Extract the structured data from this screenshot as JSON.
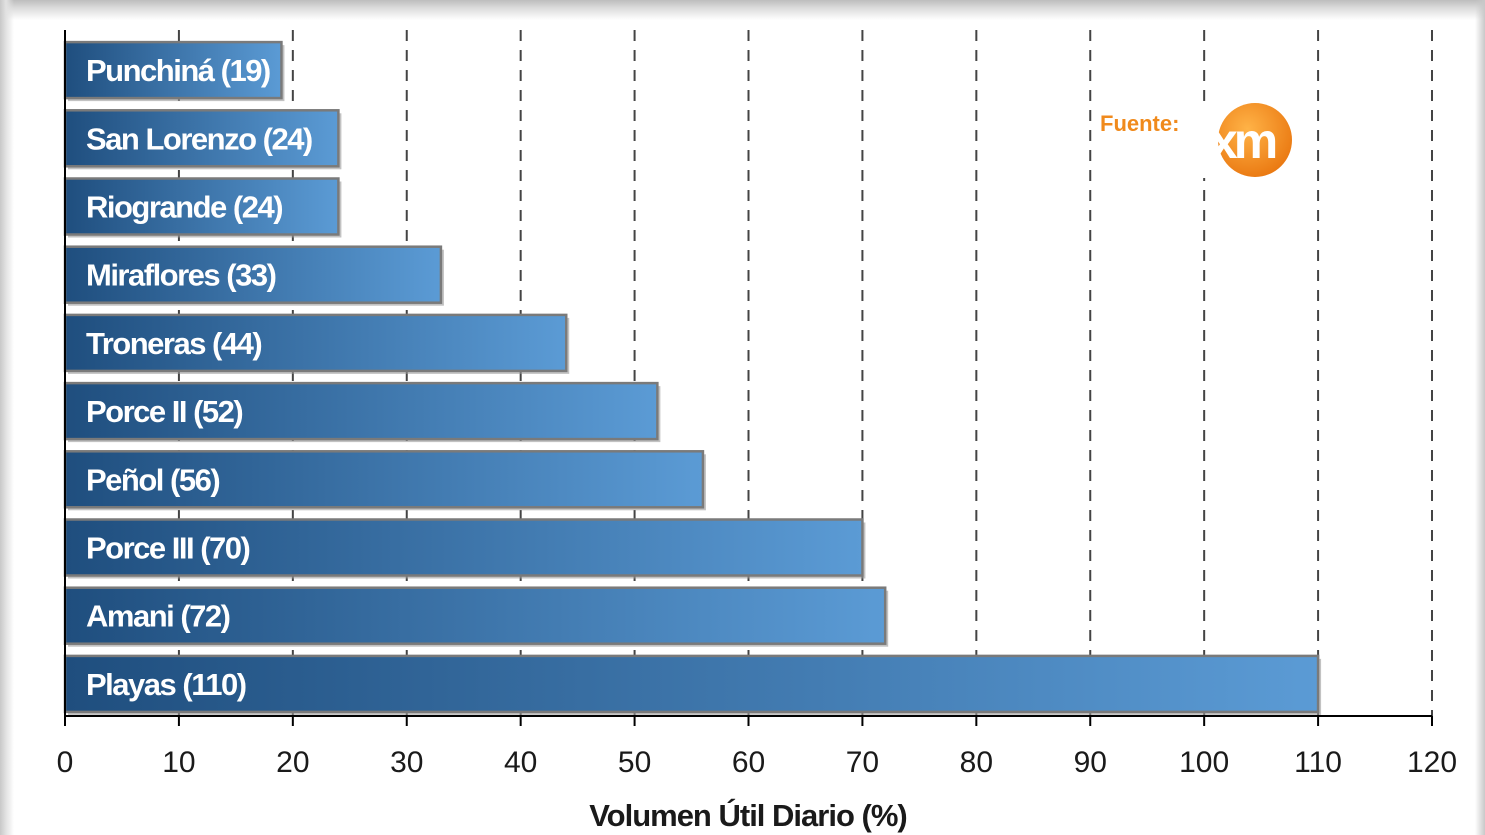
{
  "chart_data": {
    "type": "bar",
    "orientation": "horizontal",
    "categories": [
      "Punchiná (19)",
      "San Lorenzo (24)",
      "Riogrande (24)",
      "Miraflores (33)",
      "Troneras (44)",
      "Porce II (52)",
      "Peñol (56)",
      "Porce III (70)",
      "Amani (72)",
      "Playas (110)"
    ],
    "values": [
      19,
      24,
      24,
      33,
      44,
      52,
      56,
      70,
      72,
      110
    ],
    "xlabel": "Volumen Útil Diario (%)",
    "ylabel": "",
    "xlim": [
      0,
      120
    ],
    "xticks": [
      "0",
      "10",
      "20",
      "30",
      "40",
      "50",
      "60",
      "70",
      "80",
      "90",
      "100",
      "110",
      "120"
    ],
    "grid": "vertical dashed",
    "bar_color_dark": "#1f4e7e",
    "bar_color_light": "#5b9bd5"
  },
  "source": {
    "label": "Fuente:",
    "logo_text": "xm",
    "logo_color": "#f08a1c"
  }
}
